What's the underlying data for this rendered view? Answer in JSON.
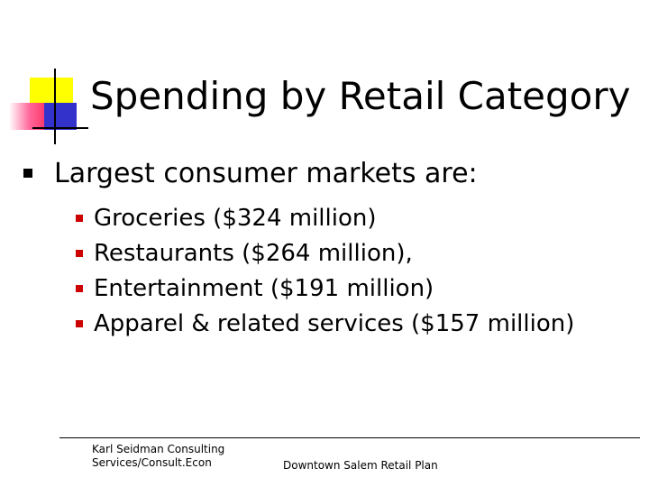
{
  "slide": {
    "title": "Spending by Retail Category",
    "bullet": "Largest consumer markets are:",
    "sub_bullets": [
      "Groceries ($324 million)",
      "Restaurants ($264 million),",
      "Entertainment ($191 million)",
      "Apparel & related services ($157 million)"
    ]
  },
  "footer": {
    "left_line1": "Karl Seidman Consulting",
    "left_line2": "Services/Consult.Econ",
    "center": "Downtown Salem Retail Plan"
  },
  "colors": {
    "sub_bullet_marker": "#cc0000",
    "logo_yellow": "#ffff00",
    "logo_blue": "#3333cc",
    "logo_pink": "#ff3366"
  }
}
